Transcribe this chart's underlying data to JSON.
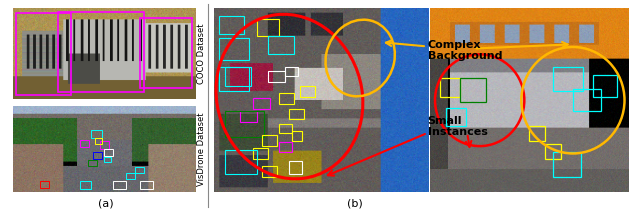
{
  "figure_width": 6.4,
  "figure_height": 2.11,
  "dpi": 100,
  "background_color": "#ffffff",
  "panel_a_label": "(a)",
  "panel_b_label": "(b)",
  "label_coco": "COCO Dataset",
  "label_visdrone": "VisDrone Dataset",
  "annotation_complex": "Complex\nBackground",
  "annotation_small": "Small\nInstances",
  "font_size_label": 6,
  "font_size_caption": 8,
  "font_size_annotation": 8
}
